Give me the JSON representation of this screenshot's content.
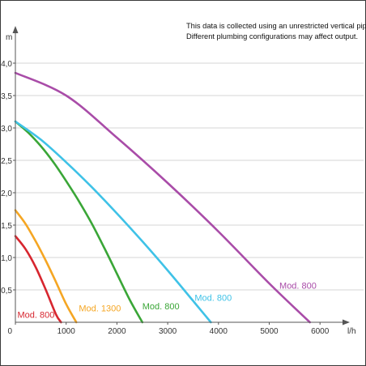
{
  "note_lines": [
    "This data is collected using an unrestricted vertical pipe.",
    "Different plumbing configurations may affect output."
  ],
  "chart_data": {
    "type": "line",
    "title": "",
    "xlabel": "l/h",
    "ylabel": "m",
    "xlim": [
      0,
      6300
    ],
    "ylim": [
      0,
      4.45
    ],
    "x_ticks": [
      {
        "value": 0,
        "label": "0"
      },
      {
        "value": 1000,
        "label": "1000"
      },
      {
        "value": 2000,
        "label": "2000"
      },
      {
        "value": 3000,
        "label": "3000"
      },
      {
        "value": 4000,
        "label": "4000"
      },
      {
        "value": 5000,
        "label": "5000"
      },
      {
        "value": 6000,
        "label": "6000"
      }
    ],
    "y_ticks": [
      {
        "value": 0.5,
        "label": "0,5"
      },
      {
        "value": 1.0,
        "label": "1,0"
      },
      {
        "value": 1.5,
        "label": "1,5"
      },
      {
        "value": 2.0,
        "label": "2,0"
      },
      {
        "value": 2.5,
        "label": "2,5"
      },
      {
        "value": 3.0,
        "label": "3,0"
      },
      {
        "value": 3.5,
        "label": "3,5"
      },
      {
        "value": 4.0,
        "label": "4,0"
      }
    ],
    "grid": "horizontal",
    "series": [
      {
        "name": "Mod. 800",
        "color": "#d7262f",
        "x": [
          0,
          200,
          400,
          600,
          800,
          900
        ],
        "y": [
          1.33,
          1.13,
          0.85,
          0.5,
          0.12,
          0.0
        ],
        "label_at": [
          40,
          0.12
        ]
      },
      {
        "name": "Mod. 1300",
        "color": "#f5a623",
        "x": [
          0,
          200,
          400,
          600,
          800,
          1000,
          1200
        ],
        "y": [
          1.73,
          1.52,
          1.25,
          0.95,
          0.62,
          0.28,
          0.0
        ],
        "label_at": [
          1250,
          0.22
        ]
      },
      {
        "name": "Mod. 800",
        "color": "#3aa637",
        "x": [
          0,
          250,
          500,
          750,
          1000,
          1250,
          1500,
          1750,
          2000,
          2250,
          2500
        ],
        "y": [
          3.1,
          2.93,
          2.72,
          2.47,
          2.18,
          1.87,
          1.53,
          1.15,
          0.75,
          0.35,
          0.0
        ],
        "label_at": [
          2500,
          0.25
        ]
      },
      {
        "name": "Mod. 800",
        "color": "#3fc2e7",
        "x": [
          0,
          500,
          1000,
          1500,
          2000,
          2500,
          3000,
          3500,
          3850
        ],
        "y": [
          3.1,
          2.82,
          2.47,
          2.09,
          1.68,
          1.25,
          0.8,
          0.33,
          0.0
        ],
        "label_at": [
          3530,
          0.38
        ]
      },
      {
        "name": "Mod. 800",
        "color": "#a94ca8",
        "x": [
          0,
          1000,
          2000,
          3000,
          4000,
          5000,
          5800
        ],
        "y": [
          3.85,
          3.5,
          2.85,
          2.15,
          1.4,
          0.6,
          0.0
        ],
        "label_at": [
          5200,
          0.57
        ]
      }
    ]
  }
}
